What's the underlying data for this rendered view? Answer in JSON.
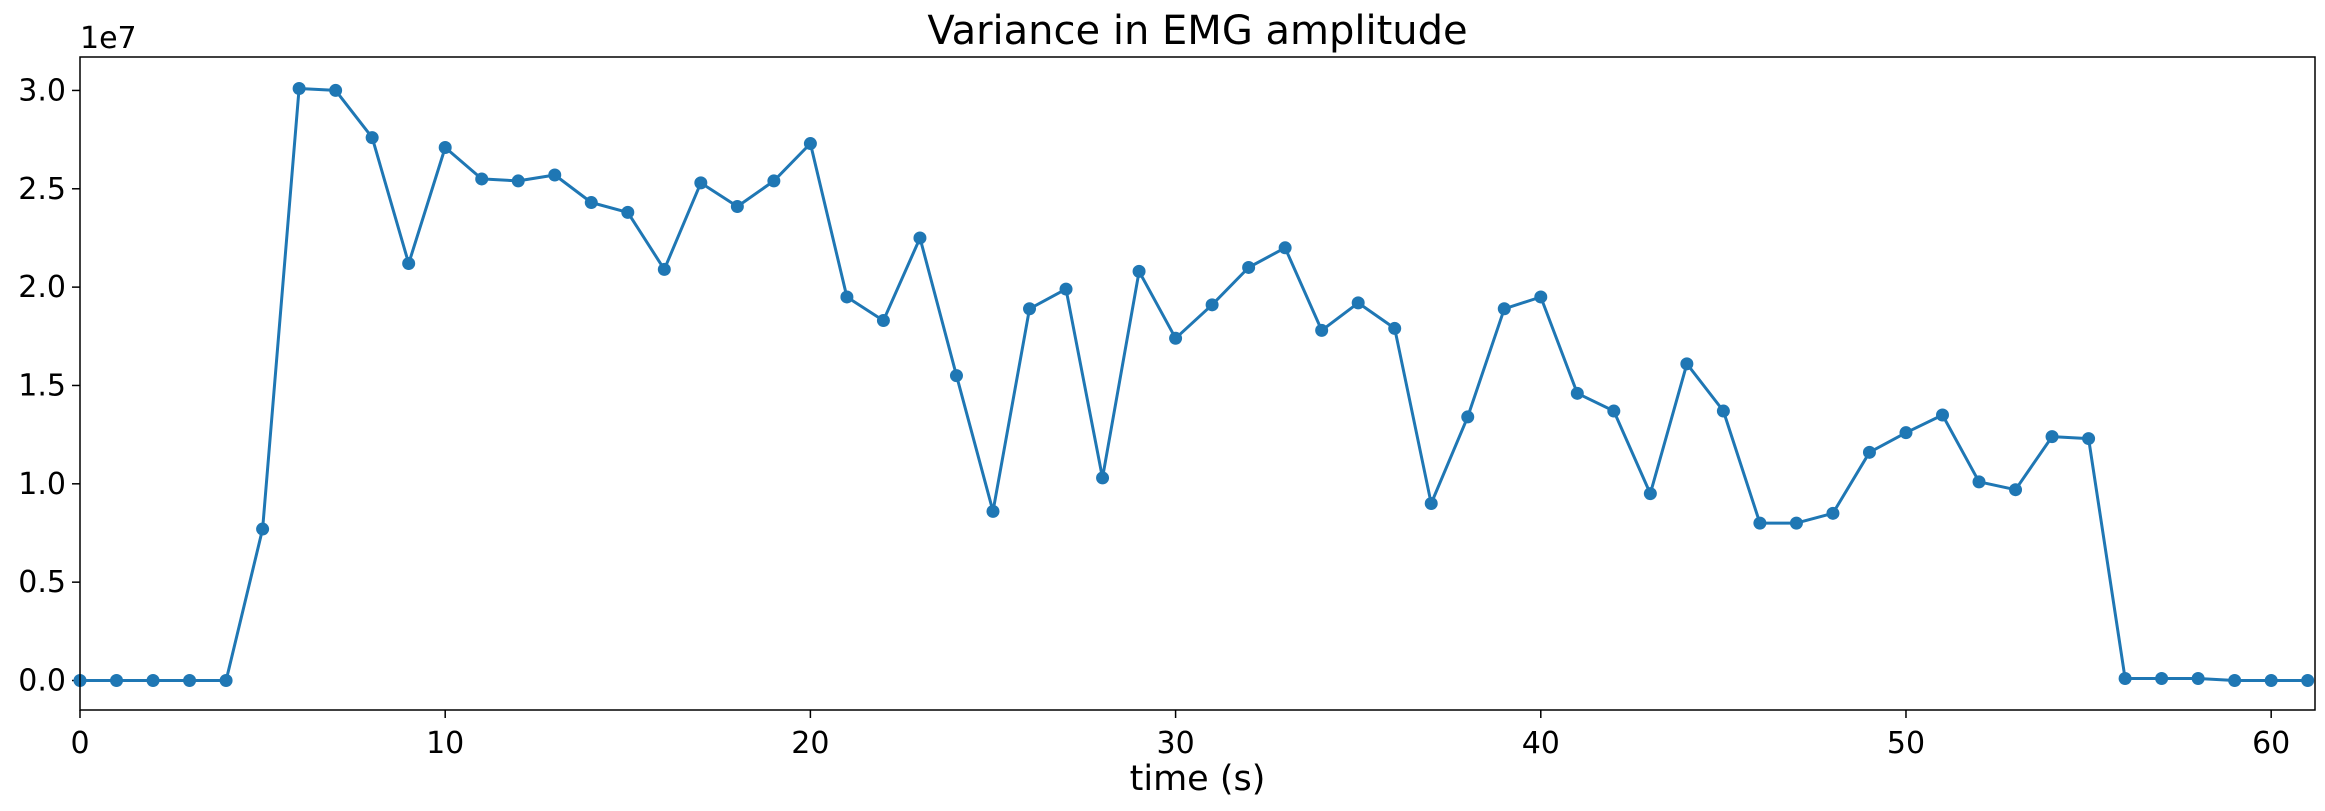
{
  "chart_data": {
    "type": "line",
    "title": "Variance in EMG amplitude",
    "xlabel": "time (s)",
    "ylabel": "",
    "y_offset_label": "1e7",
    "xlim": [
      0,
      61.2
    ],
    "ylim": [
      -0.15,
      3.17
    ],
    "x_ticks": [
      0,
      10,
      20,
      30,
      40,
      50,
      60
    ],
    "x_tick_labels": [
      "0",
      "10",
      "20",
      "30",
      "40",
      "50",
      "60"
    ],
    "y_ticks": [
      0,
      0.5,
      1.0,
      1.5,
      2.0,
      2.5,
      3.0
    ],
    "y_tick_labels": [
      "0.0",
      "0.5",
      "1.0",
      "1.5",
      "2.0",
      "2.5",
      "3.0"
    ],
    "grid": false,
    "line_color": "#1f77b4",
    "marker": "circle",
    "series": [
      {
        "x": [
          0,
          1,
          2,
          3,
          4,
          5,
          6,
          7,
          8,
          9,
          10,
          11,
          12,
          13,
          14,
          15,
          16,
          17,
          18,
          19,
          20,
          21,
          22,
          23,
          24,
          25,
          26,
          27,
          28,
          29,
          30,
          31,
          32,
          33,
          34,
          35,
          36,
          37,
          38,
          39,
          40,
          41,
          42,
          43,
          44,
          45,
          46,
          47,
          48,
          49,
          50,
          51,
          52,
          53,
          54,
          55,
          56,
          57,
          58,
          59,
          60,
          61
        ],
        "values": [
          0.0,
          0.0,
          0.0,
          0.0,
          0.0,
          0.77,
          3.01,
          3.0,
          2.76,
          2.12,
          2.71,
          2.55,
          2.54,
          2.57,
          2.43,
          2.38,
          2.09,
          2.53,
          2.41,
          2.54,
          2.73,
          1.95,
          1.83,
          2.25,
          1.55,
          0.86,
          1.89,
          1.99,
          1.03,
          2.08,
          1.74,
          1.91,
          2.1,
          2.2,
          1.78,
          1.92,
          1.79,
          0.9,
          1.34,
          1.89,
          1.95,
          1.46,
          1.37,
          0.95,
          1.61,
          1.37,
          0.8,
          0.8,
          0.85,
          1.16,
          1.26,
          1.35,
          1.01,
          0.97,
          1.24,
          1.23,
          0.01,
          0.01,
          0.01,
          0.0,
          0.0,
          0.0
        ]
      }
    ]
  }
}
